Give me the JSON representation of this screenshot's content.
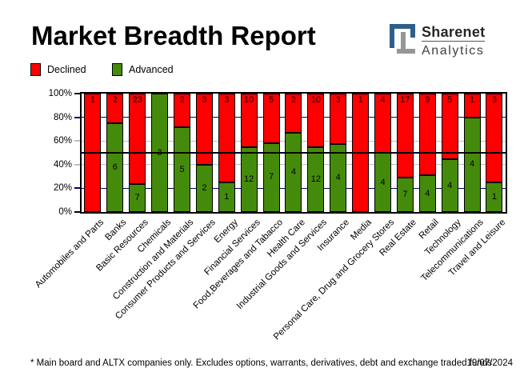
{
  "title": "Market Breadth Report",
  "logo": {
    "name": "Sharenet",
    "sub": "Analytics",
    "icon_blue": "#2d5f8c",
    "icon_gray": "#969696"
  },
  "legend": {
    "items": [
      {
        "label": "Declined",
        "color": "#ff0000"
      },
      {
        "label": "Advanced",
        "color": "#458b0b"
      }
    ]
  },
  "chart_data": {
    "type": "bar",
    "stacked": "percent",
    "title": "Market Breadth Report",
    "categories": [
      "Automobiles and Parts",
      "Banks",
      "Basic Resources",
      "Chemicals",
      "Construction and Materials",
      "Consumer Products and Services",
      "Energy",
      "Financial Services",
      "Food,Beverages and Tabacco",
      "Health Care",
      "Industrial Goods and Services",
      "Insurance",
      "Media",
      "Personal Care, Drug and Grocery Stores",
      "Real Estate",
      "Retail",
      "Technology",
      "Telecommunications",
      "Travel and Leisure"
    ],
    "series": [
      {
        "name": "Declined",
        "color": "#ff0000",
        "values": [
          1,
          2,
          23,
          0,
          2,
          3,
          3,
          10,
          5,
          2,
          10,
          3,
          1,
          4,
          17,
          9,
          5,
          1,
          3
        ]
      },
      {
        "name": "Advanced",
        "color": "#458b0b",
        "values": [
          0,
          6,
          7,
          3,
          5,
          2,
          1,
          12,
          7,
          4,
          12,
          4,
          0,
          4,
          7,
          4,
          4,
          4,
          1
        ]
      }
    ],
    "y_axis": {
      "tick_labels": [
        "100%",
        "80%",
        "60%",
        "40%",
        "20%",
        "0%"
      ],
      "range_pct": [
        0,
        100
      ]
    },
    "gridlines": [
      {
        "pct": 100,
        "color": "#000000",
        "tick_only": true
      },
      {
        "pct": 80,
        "color": "#000080",
        "over": false
      },
      {
        "pct": 60,
        "color": "#c0c0c0",
        "over": false
      },
      {
        "pct": 50,
        "color": "#000000",
        "over": true,
        "thickness": 2,
        "tick": false
      },
      {
        "pct": 40,
        "color": "#c0c0c0",
        "over": false
      },
      {
        "pct": 20,
        "color": "#000080",
        "over": false
      },
      {
        "pct": 0,
        "color": "#000000",
        "tick_only": true
      }
    ],
    "legend_position": "top-left"
  },
  "footer": {
    "note": "* Main board and ALTX companies only. Excludes options, warrants, derivatives, debt and exchange traded funds",
    "date": "19/07/2024"
  }
}
